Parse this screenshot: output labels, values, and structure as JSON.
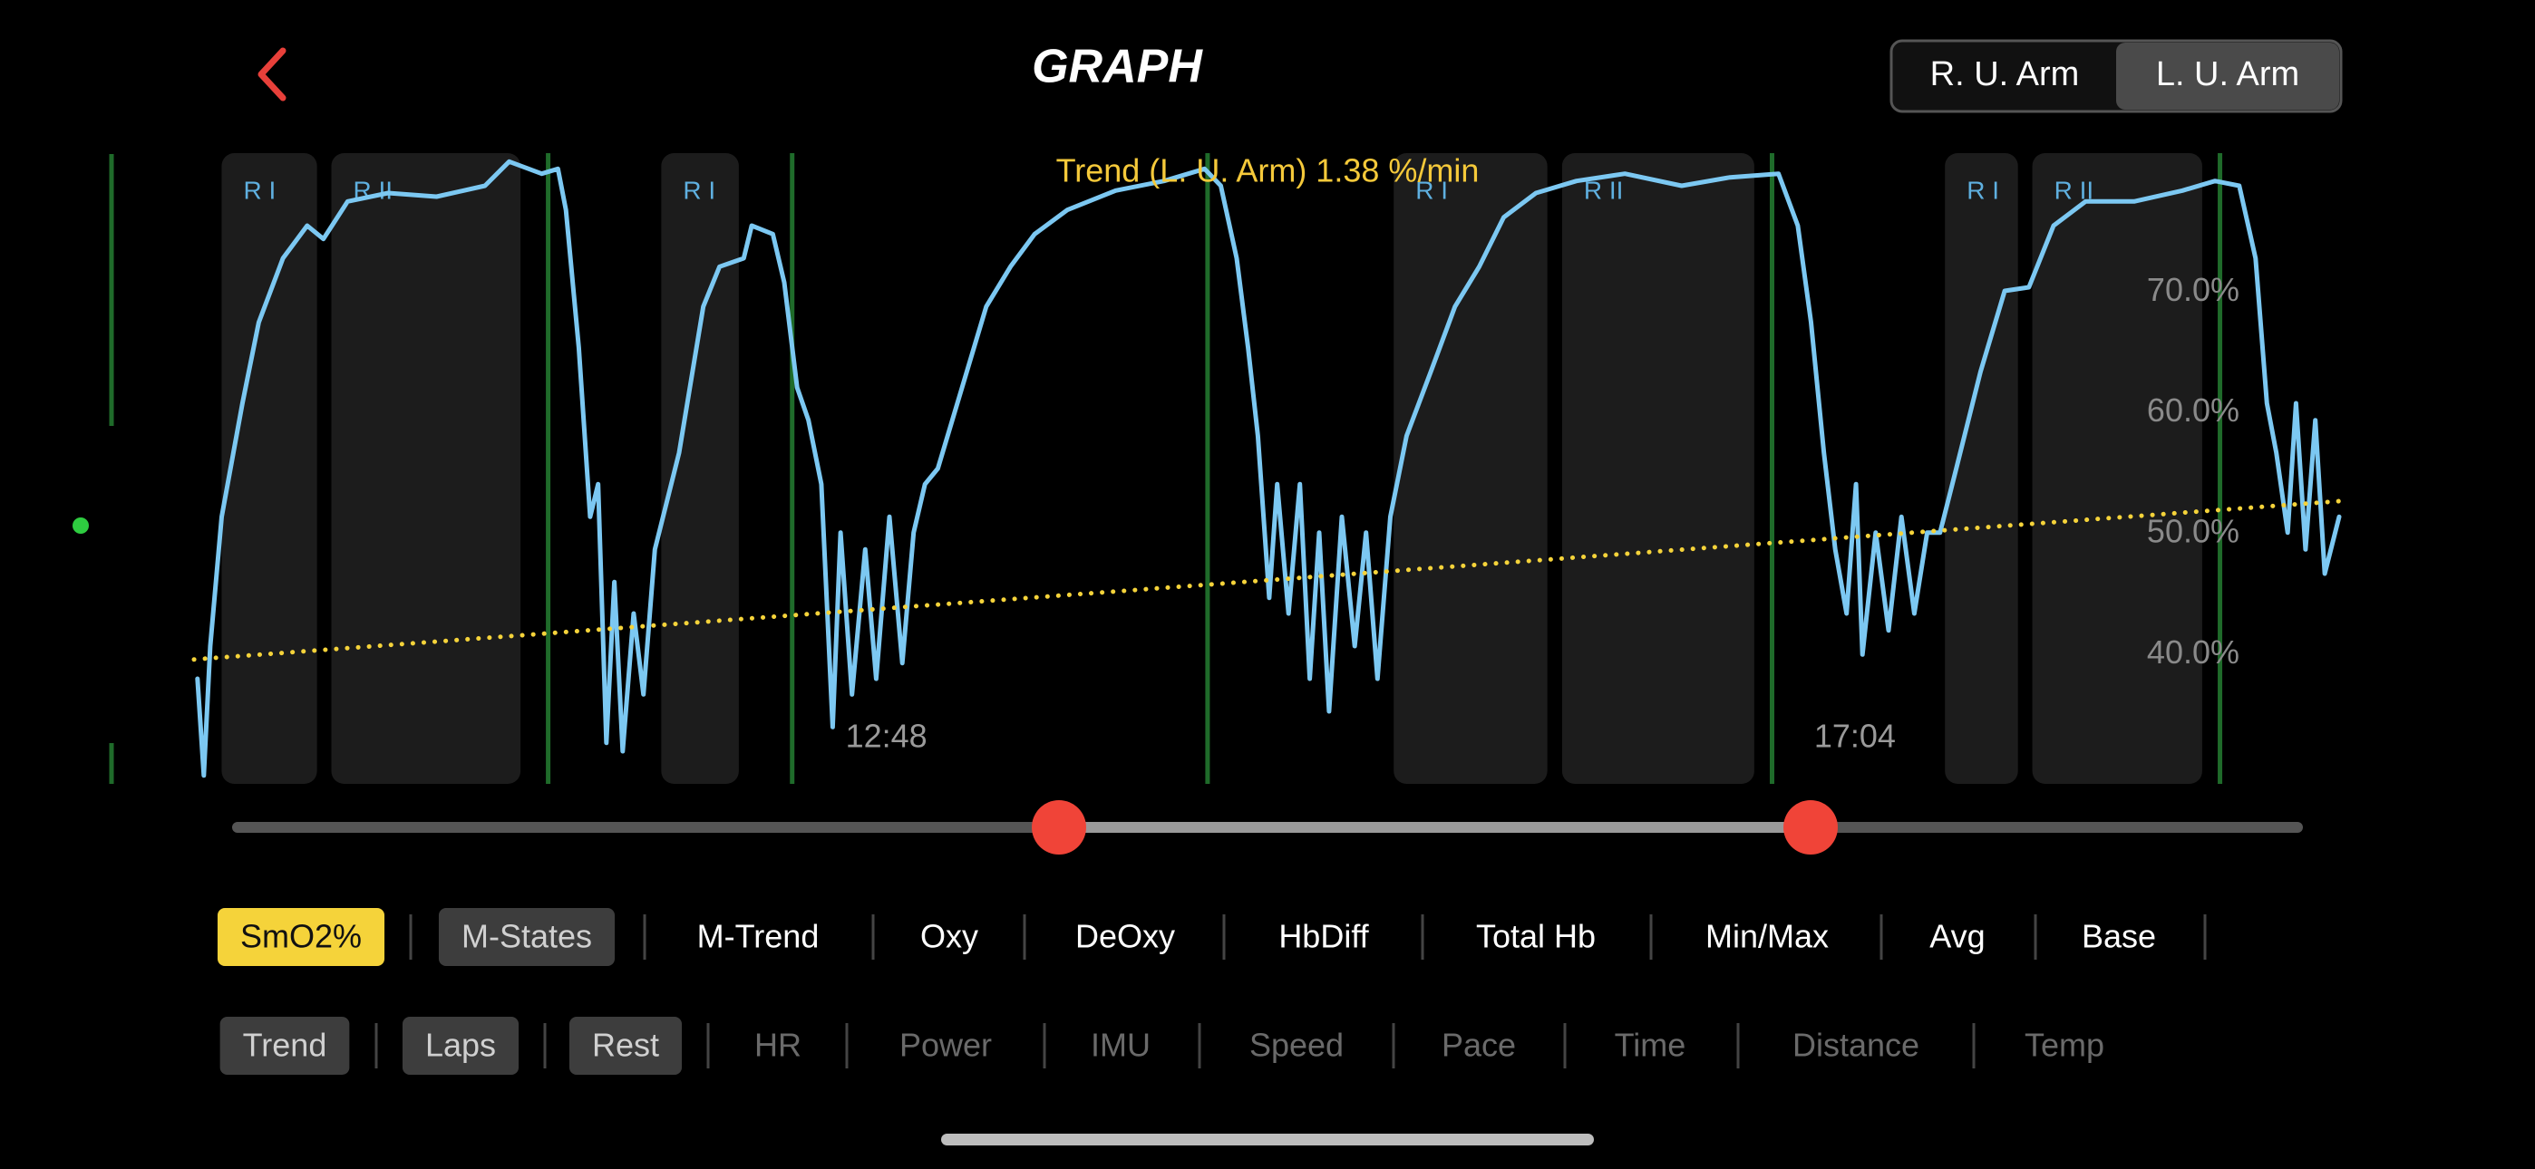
{
  "header": {
    "title": "GRAPH",
    "sensors": [
      "R. U. Arm",
      "L. U. Arm"
    ],
    "selected_sensor": 1
  },
  "chart_data": {
    "type": "line",
    "annotation": "Trend (L. U. Arm) 1.38 %/min",
    "xlim": [
      585,
      1152
    ],
    "xticks": [
      {
        "value": 768,
        "label": "12:48"
      },
      {
        "value": 1024,
        "label": "17:04"
      }
    ],
    "ylim": [
      29.3,
      81.5
    ],
    "yticks": [
      {
        "value": 40,
        "label": "40.0%"
      },
      {
        "value": 50,
        "label": "50.0%"
      },
      {
        "value": 60,
        "label": "60.0%"
      },
      {
        "value": 70,
        "label": "70.0%"
      }
    ],
    "regions": [
      {
        "label": "R I",
        "start": 592.3,
        "end": 617.5
      },
      {
        "label": "R II",
        "start": 621.3,
        "end": 671.3
      },
      {
        "label": "R I",
        "start": 708.5,
        "end": 729.0
      },
      {
        "label": "R I",
        "start": 902.1,
        "end": 942.7
      },
      {
        "label": "R II",
        "start": 946.6,
        "end": 997.4
      },
      {
        "label": "R I",
        "start": 1047.8,
        "end": 1067.1
      },
      {
        "label": "R II",
        "start": 1070.9,
        "end": 1115.8
      }
    ],
    "laps": [
      678.6,
      743.1,
      852.9,
      1002.1,
      1120.5
    ],
    "lap_color": "#1f6b2a",
    "series": [
      {
        "color": "#7cc8f2",
        "x": [
          585.9,
          587.6,
          589.3,
          592.3,
          597.8,
          602.1,
          608.5,
          614.9,
          619.2,
          625.6,
          636.3,
          649.1,
          661.9,
          668.3,
          676.9,
          681.2,
          683.3,
          686.7,
          689.7,
          691.8,
          694.0,
          696.1,
          698.3,
          701.2,
          703.8,
          706.8,
          713.2,
          719.6,
          723.9,
          730.3,
          732.4,
          738.0,
          741.0,
          744.4,
          747.4,
          750.8,
          753.8,
          755.9,
          758.9,
          762.4,
          765.3,
          768.8,
          772.2,
          775.2,
          778.2,
          781.6,
          788.0,
          794.4,
          800.8,
          807.2,
          815.8,
          828.6,
          841.4,
          852.1,
          856.4,
          860.6,
          863.6,
          866.2,
          869.2,
          871.3,
          874.3,
          877.3,
          879.9,
          882.4,
          885.0,
          888.4,
          891.8,
          894.8,
          897.8,
          901.2,
          905.5,
          911.9,
          918.3,
          924.7,
          931.2,
          939.7,
          950.4,
          963.2,
          978.2,
          991.0,
          1003.8,
          1008.9,
          1012.4,
          1015.8,
          1018.8,
          1021.8,
          1024.3,
          1026.0,
          1029.5,
          1032.9,
          1036.3,
          1039.7,
          1043.1,
          1046.5,
          1050.8,
          1057.2,
          1063.6,
          1070.0,
          1076.5,
          1085.0,
          1097.8,
          1110.6,
          1119.2,
          1125.6,
          1129.9,
          1132.9,
          1135.4,
          1138.4,
          1140.6,
          1143.1,
          1145.7,
          1148.2,
          1152
        ],
        "values": [
          38.0,
          30.0,
          40.7,
          51.4,
          60.8,
          67.5,
          72.8,
          75.5,
          74.4,
          77.5,
          78.2,
          77.9,
          78.8,
          80.8,
          79.8,
          80.2,
          76.8,
          65.4,
          51.4,
          54.1,
          32.7,
          46.0,
          32.0,
          43.4,
          36.7,
          48.7,
          56.7,
          68.8,
          72.1,
          72.8,
          75.5,
          74.8,
          70.8,
          62.1,
          59.4,
          54.1,
          34.0,
          50.1,
          36.7,
          48.7,
          38.0,
          51.4,
          39.3,
          50.1,
          54.1,
          55.4,
          62.1,
          68.8,
          72.1,
          74.8,
          76.8,
          78.4,
          79.2,
          80.2,
          78.8,
          72.8,
          65.4,
          58.1,
          44.7,
          54.1,
          43.4,
          54.1,
          38.0,
          50.1,
          35.3,
          51.4,
          40.7,
          50.1,
          38.0,
          51.4,
          58.1,
          63.4,
          68.8,
          72.1,
          76.2,
          78.2,
          79.2,
          79.8,
          78.8,
          79.5,
          79.8,
          75.5,
          67.5,
          56.7,
          48.7,
          43.4,
          54.1,
          40.0,
          50.1,
          42.0,
          51.4,
          43.4,
          50.1,
          50.1,
          55.4,
          63.4,
          70.1,
          70.4,
          75.5,
          77.5,
          77.5,
          78.4,
          79.2,
          78.8,
          72.8,
          60.8,
          56.7,
          50.1,
          60.8,
          48.7,
          59.4,
          46.7,
          51.4
        ]
      },
      {
        "color": "#f5d33a",
        "style": "dotted",
        "x": [
          585,
          1152
        ],
        "values": [
          39.6,
          52.7
        ]
      }
    ]
  },
  "controls": {
    "row1": [
      {
        "label": "SmO2%",
        "state": "highlight"
      },
      {
        "label": "M-States",
        "state": "on"
      },
      {
        "label": "M-Trend",
        "state": "off"
      },
      {
        "label": "Oxy",
        "state": "off"
      },
      {
        "label": "DeOxy",
        "state": "off"
      },
      {
        "label": "HbDiff",
        "state": "off"
      },
      {
        "label": "Total Hb",
        "state": "off"
      },
      {
        "label": "Min/Max",
        "state": "off"
      },
      {
        "label": "Avg",
        "state": "off"
      },
      {
        "label": "Base",
        "state": "off"
      }
    ],
    "row2": [
      {
        "label": "Trend",
        "state": "on"
      },
      {
        "label": "Laps",
        "state": "on"
      },
      {
        "label": "Rest",
        "state": "on"
      },
      {
        "label": "HR",
        "state": "disabled"
      },
      {
        "label": "Power",
        "state": "disabled"
      },
      {
        "label": "IMU",
        "state": "disabled"
      },
      {
        "label": "Speed",
        "state": "disabled"
      },
      {
        "label": "Pace",
        "state": "disabled"
      },
      {
        "label": "Time",
        "state": "disabled"
      },
      {
        "label": "Distance",
        "state": "disabled"
      },
      {
        "label": "Temp",
        "state": "disabled"
      }
    ]
  }
}
